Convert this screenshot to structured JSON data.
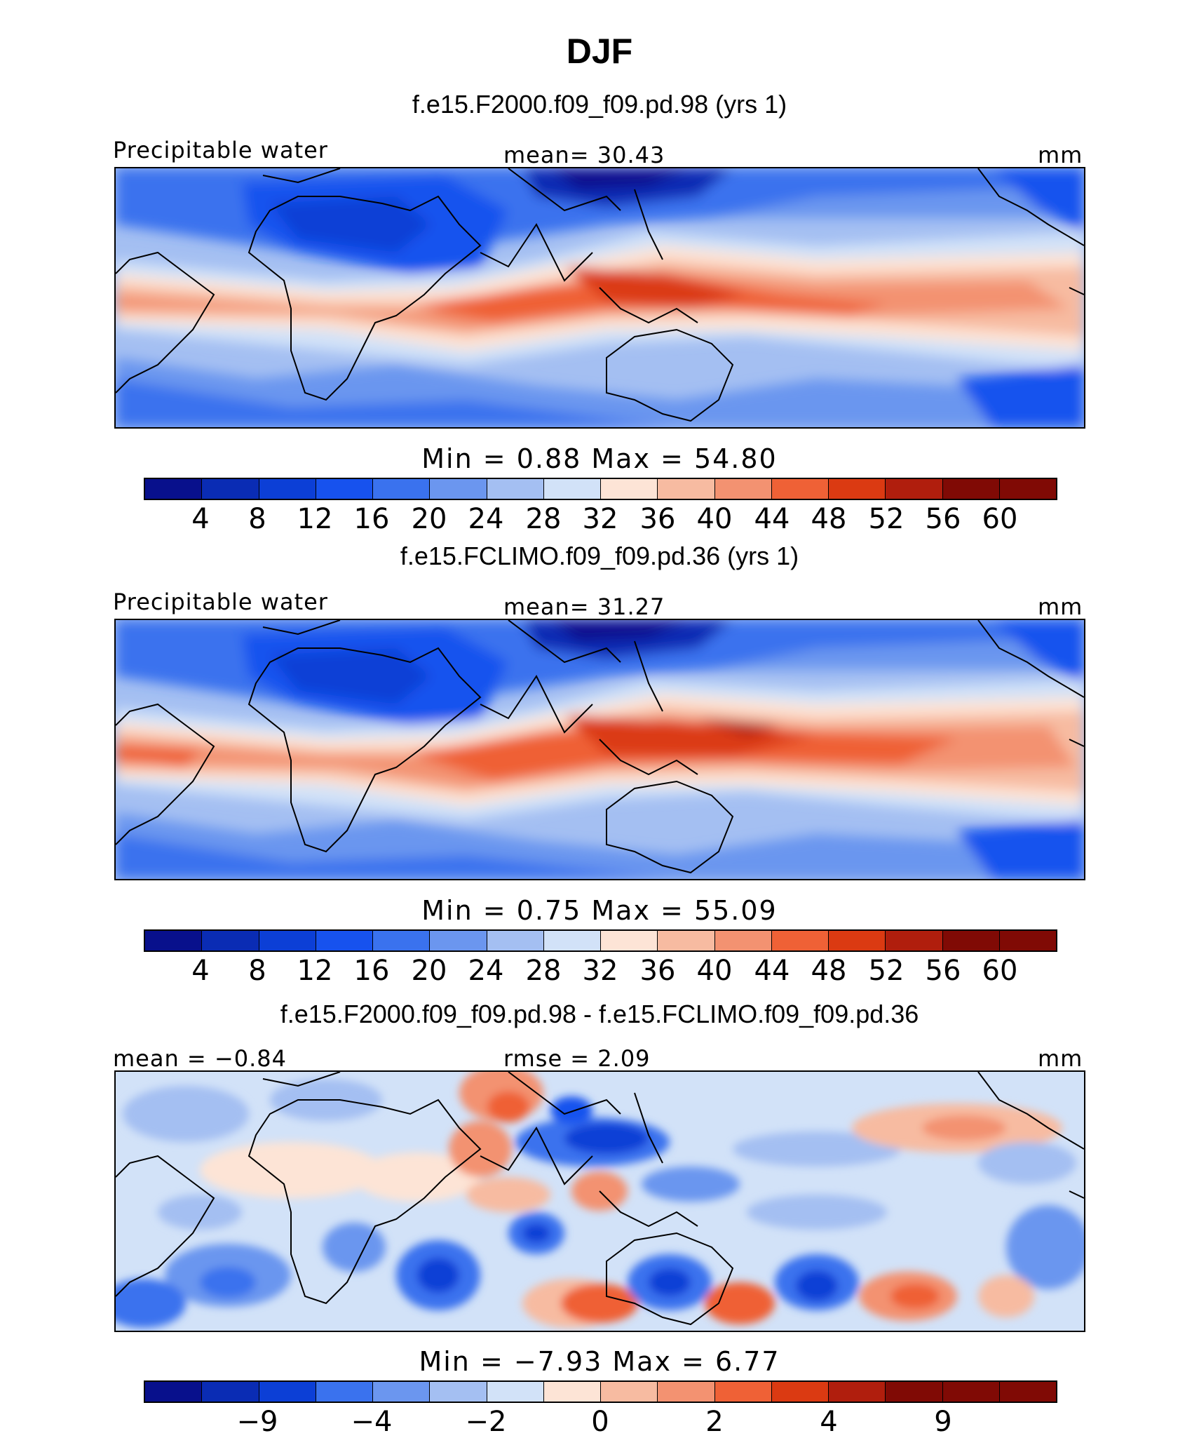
{
  "title": "DJF",
  "colors": {
    "abs": [
      "#08108c",
      "#0a2cb4",
      "#0c3fd6",
      "#1752ee",
      "#3a72ee",
      "#6b96ef",
      "#a4bff2",
      "#d2e2f8",
      "#fde4d6",
      "#f7bba1",
      "#f39271",
      "#ef6136",
      "#db3a12",
      "#b01e0d",
      "#800a05"
    ],
    "diff": [
      "#08108c",
      "#0a2cb4",
      "#0c3fd6",
      "#3a72ee",
      "#6b96ef",
      "#a4bff2",
      "#d2e2f8",
      "#fde4d6",
      "#f7bba1",
      "#f39271",
      "#ef6136",
      "#db3a12",
      "#b01e0d",
      "#800a05"
    ]
  },
  "panels": [
    {
      "subtitle": "f.e15.F2000.f09_f09.pd.98 (yrs 1)",
      "left_label": "Precipitable water",
      "center_label": "mean=   30.43",
      "units": "mm",
      "minmax": "Min  =    0.88  Max  =   54.80",
      "ticks": [
        "4",
        "8",
        "12",
        "16",
        "20",
        "24",
        "28",
        "32",
        "36",
        "40",
        "44",
        "48",
        "52",
        "56",
        "60"
      ]
    },
    {
      "subtitle": "f.e15.FCLIMO.f09_f09.pd.36 (yrs 1)",
      "left_label": "Precipitable water",
      "center_label": "mean=   31.27",
      "units": "mm",
      "minmax": "Min  =    0.75  Max  =   55.09",
      "ticks": [
        "4",
        "8",
        "12",
        "16",
        "20",
        "24",
        "28",
        "32",
        "36",
        "40",
        "44",
        "48",
        "52",
        "56",
        "60"
      ]
    },
    {
      "subtitle": "f.e15.F2000.f09_f09.pd.98 - f.e15.FCLIMO.f09_f09.pd.36",
      "left_label": "mean =  −0.84",
      "center_label": "rmse =    2.09",
      "units": "mm",
      "minmax": "Min  =  −7.93  Max  =    6.77",
      "ticks": [
        "−9",
        "−4",
        "−2",
        "0",
        "2",
        "4",
        "9"
      ]
    }
  ]
}
